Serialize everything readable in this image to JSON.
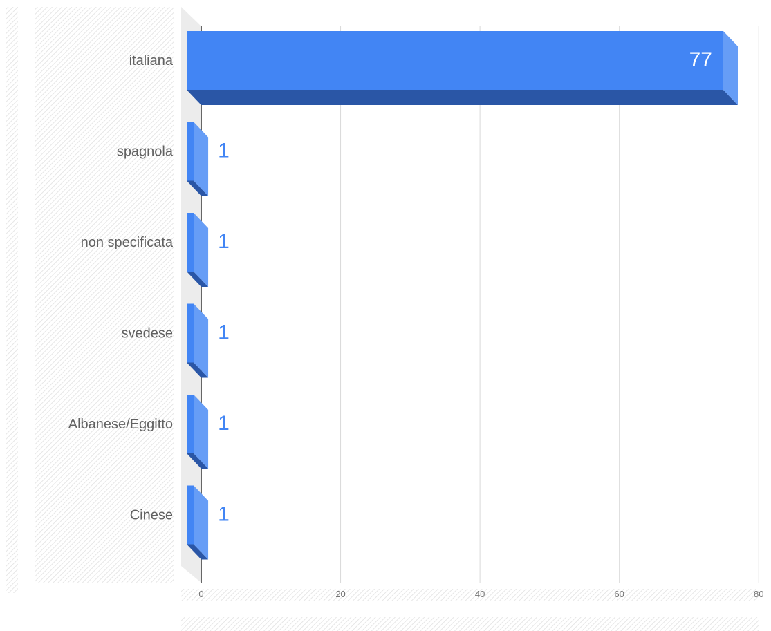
{
  "chart_data": {
    "type": "bar",
    "orientation": "horizontal",
    "style": "3d",
    "categories": [
      "italiana",
      "spagnola",
      "non specificata",
      "svedese",
      "Albanese/Eggitto",
      "Cinese"
    ],
    "values": [
      77,
      1,
      1,
      1,
      1,
      1
    ],
    "x_ticks": [
      0,
      20,
      40,
      60,
      80
    ],
    "xlim": [
      0,
      80
    ],
    "title": "",
    "xlabel": "",
    "ylabel": "",
    "legend": "none",
    "grid": "vertical",
    "colors": {
      "bar_front": "#4285f4",
      "bar_side": "#669df6",
      "bar_bottom": "#2a56a6",
      "value_label_inside": "#ffffff",
      "value_label_outside": "#4285f4",
      "gridline": "#d9d9d9",
      "axis": "#333333",
      "back_wall": "#ececec",
      "text": "#616161"
    }
  }
}
